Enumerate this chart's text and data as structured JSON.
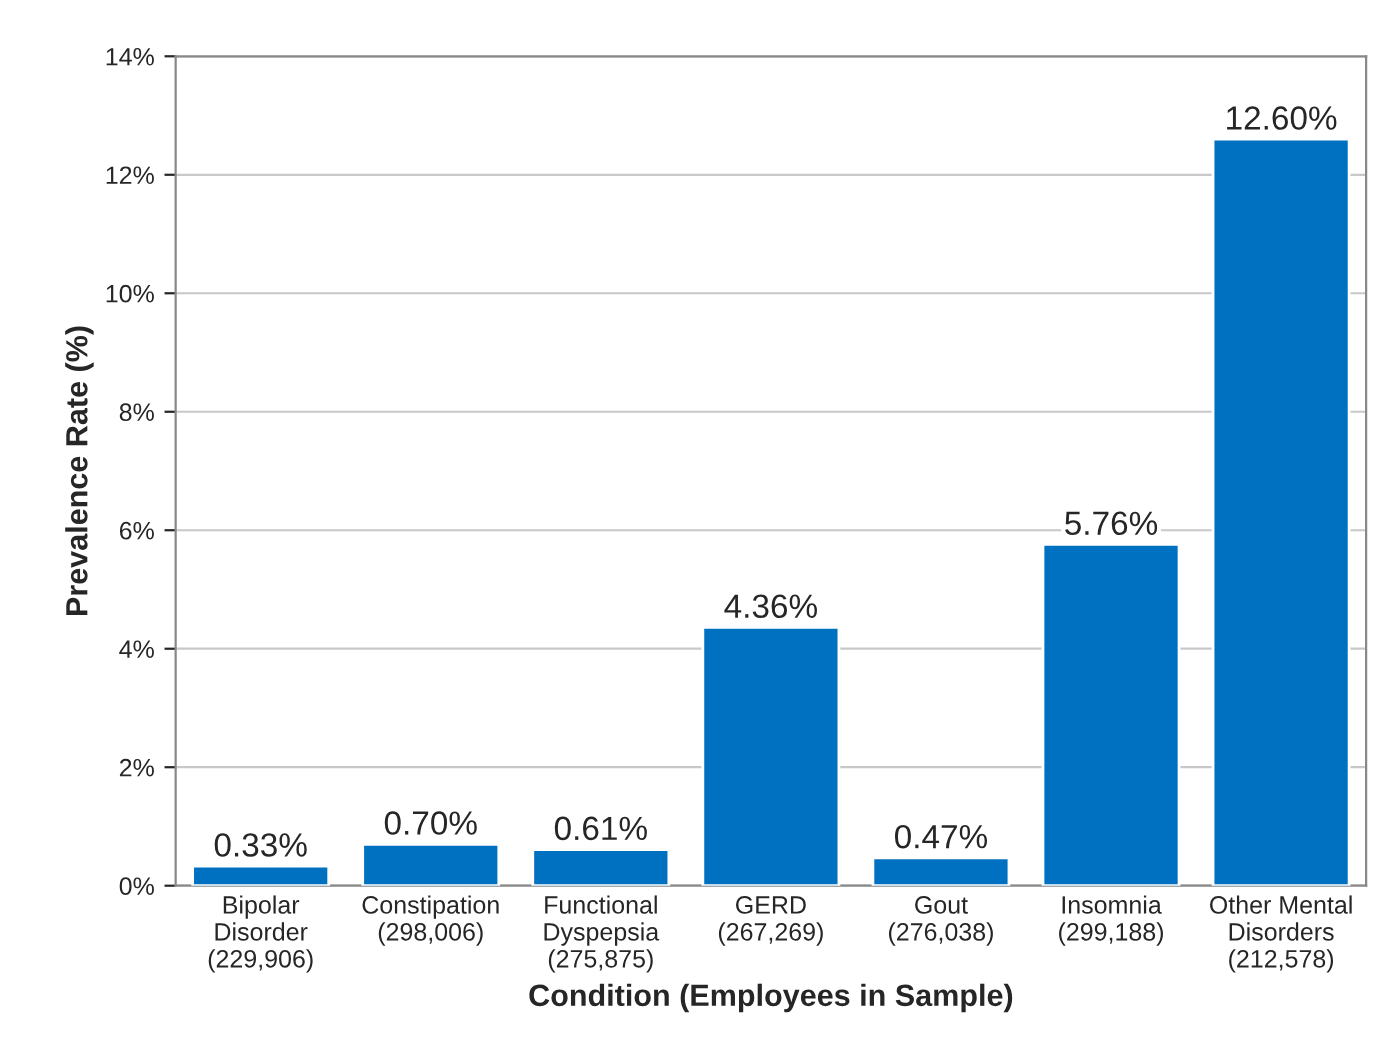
{
  "chart_data": {
    "type": "bar",
    "xlabel": "Condition (Employees in Sample)",
    "ylabel": "Prevalence Rate (%)",
    "categories": [
      "Bipolar\nDisorder\n(229,906)",
      "Constipation\n(298,006)",
      "Functional\nDyspepsia\n(275,875)",
      "GERD\n(267,269)",
      "Gout\n(276,038)",
      "Insomnia\n(299,188)",
      "Other Mental\nDisorders\n(212,578)"
    ],
    "values": [
      0.33,
      0.7,
      0.61,
      4.36,
      0.47,
      5.76,
      12.6
    ],
    "value_labels": [
      "0.33%",
      "0.70%",
      "0.61%",
      "4.36%",
      "0.47%",
      "5.76%",
      "12.60%"
    ],
    "color": "#0070c0",
    "ylim": [
      0,
      14
    ],
    "yticks": [
      {
        "value": 0,
        "label": "0%"
      },
      {
        "value": 2,
        "label": "2%"
      },
      {
        "value": 4,
        "label": "4%"
      },
      {
        "value": 6,
        "label": "6%"
      },
      {
        "value": 8,
        "label": "8%"
      },
      {
        "value": 10,
        "label": "10%"
      },
      {
        "value": 12,
        "label": "12%"
      },
      {
        "value": 14,
        "label": "14%"
      }
    ],
    "grid": "y"
  }
}
